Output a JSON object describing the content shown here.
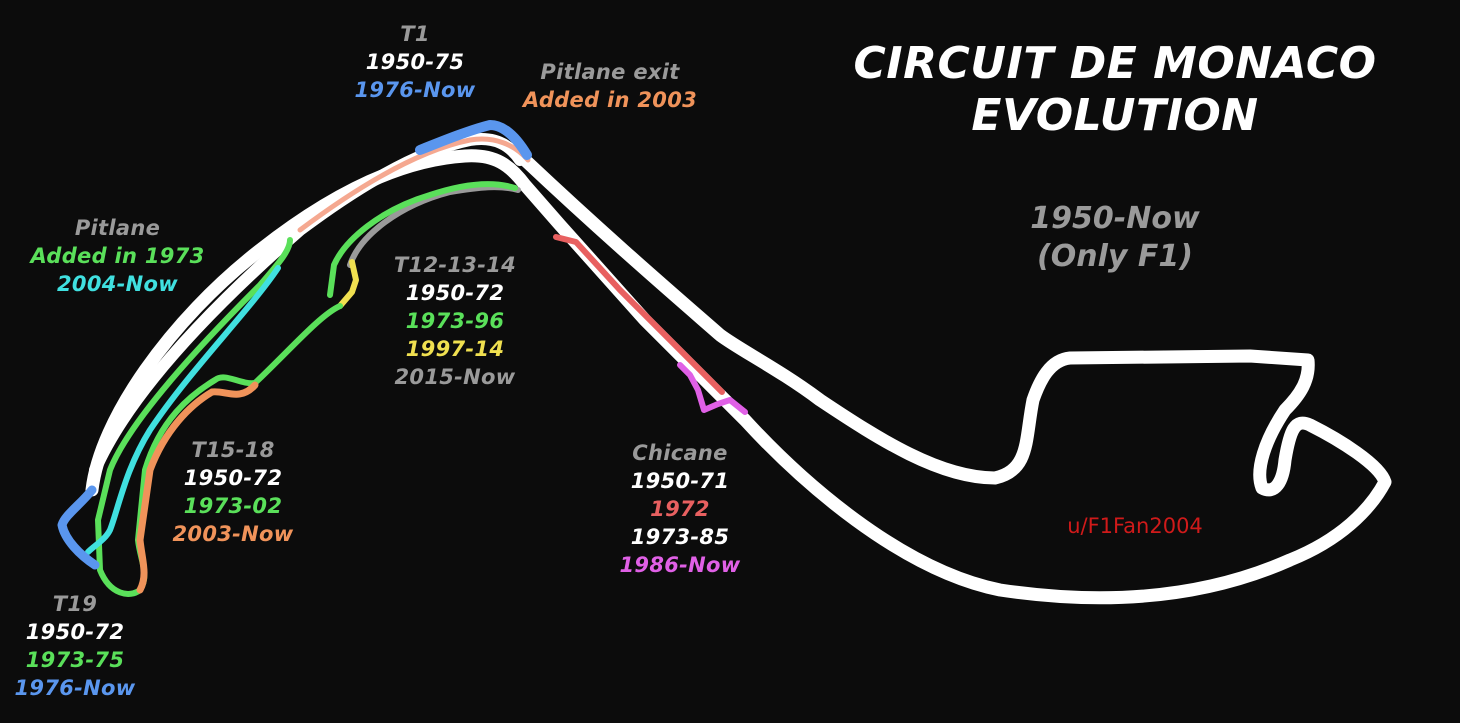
{
  "title": {
    "line1": "CIRCUIT DE MONACO",
    "line2": "EVOLUTION"
  },
  "era": {
    "line1": "1950-Now",
    "line2": "(Only F1)"
  },
  "credit": "u/F1Fan2004",
  "colors": {
    "white": "#ffffff",
    "grey": "#9a9a9a",
    "blue": "#5a96ee",
    "orange": "#f0935a",
    "green": "#5ae05a",
    "cyan": "#40e0e0",
    "yellow": "#f0e050",
    "red": "#e86060",
    "magenta": "#e060e6",
    "salmon": "#f5a890",
    "title": "#ffffff",
    "credit": "#d01a1a"
  },
  "labels": {
    "t1": {
      "name": "T1",
      "lines": [
        {
          "text": "1950-75",
          "color": "#ffffff"
        },
        {
          "text": "1976-Now",
          "color": "#5a96ee"
        }
      ]
    },
    "pit_exit": {
      "name": "Pitlane exit",
      "lines": [
        {
          "text": "Added in 2003",
          "color": "#f0935a"
        }
      ]
    },
    "pitlane": {
      "name": "Pitlane",
      "lines": [
        {
          "text": "Added in 1973",
          "color": "#5ae05a"
        },
        {
          "text": "2004-Now",
          "color": "#40e0e0"
        }
      ]
    },
    "t12": {
      "name": "T12-13-14",
      "lines": [
        {
          "text": "1950-72",
          "color": "#ffffff"
        },
        {
          "text": "1973-96",
          "color": "#5ae05a"
        },
        {
          "text": "1997-14",
          "color": "#f0e050"
        },
        {
          "text": "2015-Now",
          "color": "#9a9a9a"
        }
      ]
    },
    "t15": {
      "name": "T15-18",
      "lines": [
        {
          "text": "1950-72",
          "color": "#ffffff"
        },
        {
          "text": "1973-02",
          "color": "#5ae05a"
        },
        {
          "text": "2003-Now",
          "color": "#f0935a"
        }
      ]
    },
    "chicane": {
      "name": "Chicane",
      "lines": [
        {
          "text": "1950-71",
          "color": "#ffffff"
        },
        {
          "text": "1972",
          "color": "#e86060"
        },
        {
          "text": "1973-85",
          "color": "#ffffff"
        },
        {
          "text": "1986-Now",
          "color": "#e060e6"
        }
      ]
    },
    "t19": {
      "name": "T19",
      "lines": [
        {
          "text": "1950-72",
          "color": "#ffffff"
        },
        {
          "text": "1973-75",
          "color": "#5ae05a"
        },
        {
          "text": "1976-Now",
          "color": "#5a96ee"
        }
      ]
    }
  }
}
